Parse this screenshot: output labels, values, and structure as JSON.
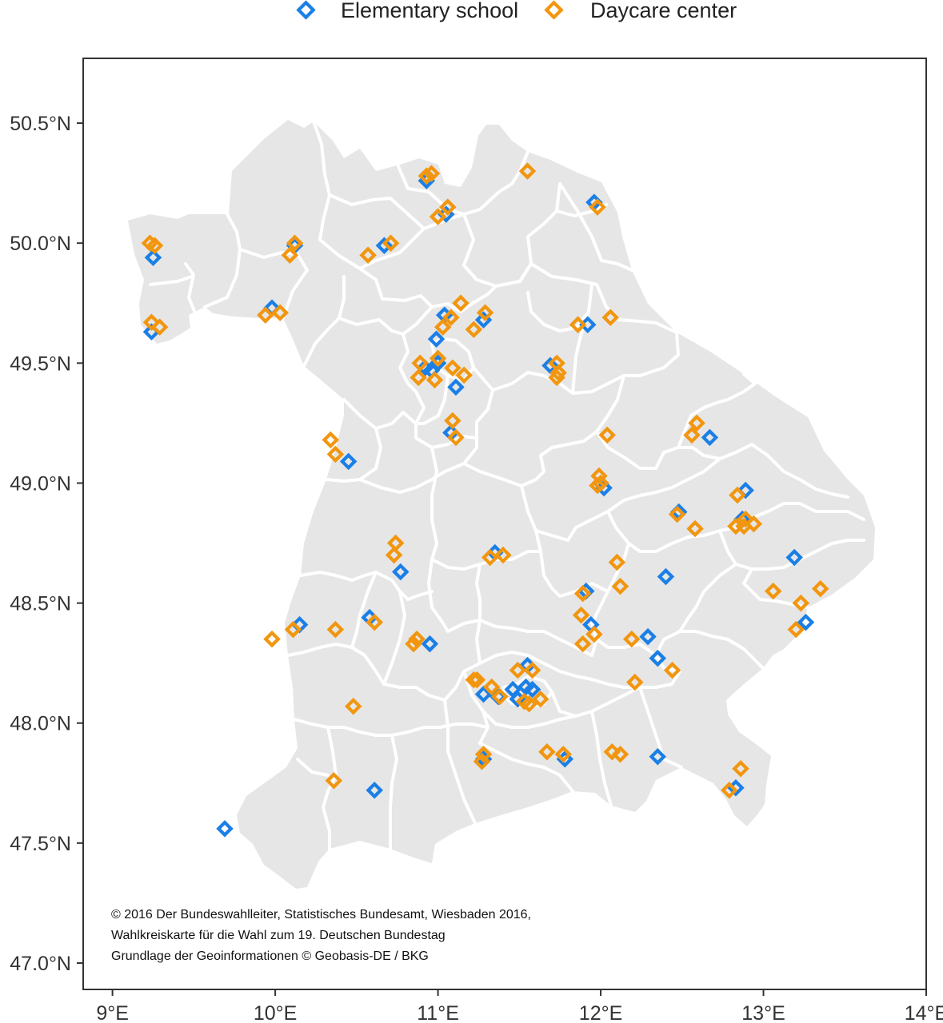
{
  "legend": {
    "items": [
      {
        "label": "Elementary school",
        "color": "#1A7FE6"
      },
      {
        "label": "Daycare center",
        "color": "#F2960F"
      }
    ]
  },
  "credits": [
    "© 2016 Der Bundeswahlleiter, Statistisches Bundesamt, Wiesbaden 2016,",
    "Wahlkreiskarte für die Wahl zum 19. Deutschen Bundestag",
    "Grundlage der Geoinformationen © Geobasis-DE / BKG"
  ],
  "axes": {
    "x_ticks": [
      "9°E",
      "10°E",
      "11°E",
      "12°E",
      "13°E",
      "14°E"
    ],
    "x_values": [
      9,
      10,
      11,
      12,
      13,
      14
    ],
    "y_ticks": [
      "47.0°N",
      "47.5°N",
      "48.0°N",
      "48.5°N",
      "49.0°N",
      "49.5°N",
      "50.0°N",
      "50.5°N"
    ],
    "y_values": [
      47.0,
      47.5,
      48.0,
      48.5,
      49.0,
      49.5,
      50.0,
      50.5
    ],
    "xlim": [
      8.82,
      14.0
    ],
    "ylim": [
      46.89,
      50.77
    ]
  },
  "colors": {
    "land": "#E6E6E6",
    "borders": "#FFFFFF",
    "frame": "#333333"
  },
  "chart_data": {
    "type": "scatter",
    "series": [
      {
        "name": "Elementary school",
        "color": "#1A7FE6",
        "points": [
          [
            9.25,
            49.94
          ],
          [
            9.24,
            49.63
          ],
          [
            9.98,
            49.73
          ],
          [
            10.12,
            49.99
          ],
          [
            10.67,
            49.99
          ],
          [
            10.93,
            50.26
          ],
          [
            11.05,
            50.12
          ],
          [
            11.96,
            50.17
          ],
          [
            11.04,
            49.7
          ],
          [
            10.99,
            49.6
          ],
          [
            11.28,
            49.68
          ],
          [
            11.92,
            49.66
          ],
          [
            10.92,
            49.48
          ],
          [
            10.96,
            49.47
          ],
          [
            11.0,
            49.5
          ],
          [
            11.11,
            49.4
          ],
          [
            11.69,
            49.49
          ],
          [
            11.08,
            49.21
          ],
          [
            10.45,
            49.09
          ],
          [
            12.67,
            49.19
          ],
          [
            12.02,
            48.98
          ],
          [
            12.89,
            48.97
          ],
          [
            12.48,
            48.88
          ],
          [
            12.87,
            48.85
          ],
          [
            11.35,
            48.71
          ],
          [
            10.77,
            48.63
          ],
          [
            13.19,
            48.69
          ],
          [
            12.4,
            48.61
          ],
          [
            11.91,
            48.55
          ],
          [
            10.58,
            48.44
          ],
          [
            10.15,
            48.41
          ],
          [
            11.94,
            48.41
          ],
          [
            13.26,
            48.42
          ],
          [
            12.29,
            48.36
          ],
          [
            10.95,
            48.33
          ],
          [
            12.35,
            48.27
          ],
          [
            11.55,
            48.24
          ],
          [
            11.28,
            48.12
          ],
          [
            11.37,
            48.11
          ],
          [
            11.46,
            48.14
          ],
          [
            11.49,
            48.1
          ],
          [
            11.54,
            48.15
          ],
          [
            11.58,
            48.14
          ],
          [
            11.28,
            47.85
          ],
          [
            11.78,
            47.85
          ],
          [
            12.35,
            47.86
          ],
          [
            10.61,
            47.72
          ],
          [
            12.83,
            47.73
          ],
          [
            9.69,
            47.56
          ]
        ]
      },
      {
        "name": "Daycare center",
        "color": "#F2960F",
        "points": [
          [
            9.23,
            50.0
          ],
          [
            9.26,
            49.99
          ],
          [
            9.24,
            49.67
          ],
          [
            9.29,
            49.65
          ],
          [
            9.94,
            49.7
          ],
          [
            10.03,
            49.71
          ],
          [
            10.09,
            49.95
          ],
          [
            10.12,
            50.0
          ],
          [
            10.57,
            49.95
          ],
          [
            10.71,
            50.0
          ],
          [
            10.93,
            50.28
          ],
          [
            10.96,
            50.29
          ],
          [
            11.0,
            50.11
          ],
          [
            11.06,
            50.15
          ],
          [
            11.55,
            50.3
          ],
          [
            11.98,
            50.15
          ],
          [
            11.14,
            49.75
          ],
          [
            11.03,
            49.65
          ],
          [
            11.08,
            49.69
          ],
          [
            11.29,
            49.71
          ],
          [
            11.22,
            49.64
          ],
          [
            11.86,
            49.66
          ],
          [
            12.06,
            49.69
          ],
          [
            10.89,
            49.5
          ],
          [
            10.88,
            49.44
          ],
          [
            10.98,
            49.43
          ],
          [
            11.0,
            49.52
          ],
          [
            11.09,
            49.48
          ],
          [
            11.16,
            49.45
          ],
          [
            11.73,
            49.5
          ],
          [
            11.73,
            49.44
          ],
          [
            11.74,
            49.46
          ],
          [
            11.09,
            49.26
          ],
          [
            11.11,
            49.19
          ],
          [
            10.34,
            49.18
          ],
          [
            10.37,
            49.12
          ],
          [
            12.04,
            49.2
          ],
          [
            12.59,
            49.25
          ],
          [
            12.56,
            49.2
          ],
          [
            11.99,
            49.03
          ],
          [
            12.0,
            49.0
          ],
          [
            11.98,
            48.99
          ],
          [
            12.84,
            48.95
          ],
          [
            12.89,
            48.85
          ],
          [
            12.83,
            48.82
          ],
          [
            12.88,
            48.82
          ],
          [
            12.94,
            48.83
          ],
          [
            12.58,
            48.81
          ],
          [
            12.47,
            48.87
          ],
          [
            10.74,
            48.75
          ],
          [
            10.73,
            48.7
          ],
          [
            11.32,
            48.69
          ],
          [
            11.4,
            48.7
          ],
          [
            12.1,
            48.67
          ],
          [
            12.12,
            48.57
          ],
          [
            11.89,
            48.54
          ],
          [
            13.06,
            48.55
          ],
          [
            13.35,
            48.56
          ],
          [
            13.23,
            48.5
          ],
          [
            9.98,
            48.35
          ],
          [
            10.11,
            48.39
          ],
          [
            10.37,
            48.39
          ],
          [
            10.61,
            48.42
          ],
          [
            11.88,
            48.45
          ],
          [
            11.96,
            48.37
          ],
          [
            12.19,
            48.35
          ],
          [
            11.89,
            48.33
          ],
          [
            10.85,
            48.33
          ],
          [
            10.87,
            48.35
          ],
          [
            13.2,
            48.39
          ],
          [
            12.44,
            48.22
          ],
          [
            12.21,
            48.17
          ],
          [
            11.22,
            48.18
          ],
          [
            11.24,
            48.18
          ],
          [
            11.33,
            48.15
          ],
          [
            11.38,
            48.11
          ],
          [
            11.49,
            48.22
          ],
          [
            11.58,
            48.22
          ],
          [
            11.63,
            48.1
          ],
          [
            11.56,
            48.08
          ],
          [
            11.53,
            48.09
          ],
          [
            10.48,
            48.07
          ],
          [
            11.28,
            47.87
          ],
          [
            11.27,
            47.84
          ],
          [
            11.67,
            47.88
          ],
          [
            11.77,
            47.87
          ],
          [
            12.07,
            47.88
          ],
          [
            12.12,
            47.87
          ],
          [
            12.86,
            47.81
          ],
          [
            12.79,
            47.72
          ],
          [
            10.36,
            47.76
          ]
        ]
      }
    ]
  }
}
